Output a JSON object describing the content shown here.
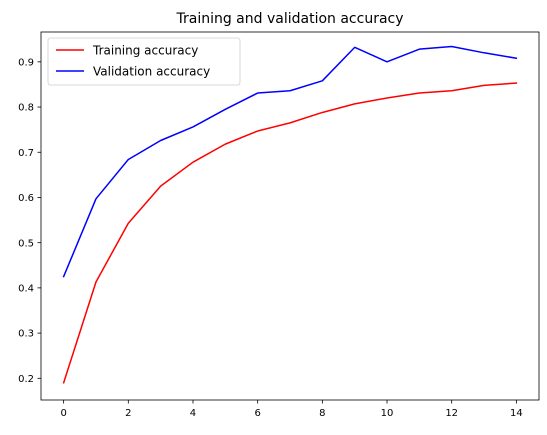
{
  "chart_data": {
    "type": "line",
    "title": "Training and validation accuracy",
    "xlabel": "",
    "ylabel": "",
    "x": [
      0,
      1,
      2,
      3,
      4,
      5,
      6,
      7,
      8,
      9,
      10,
      11,
      12,
      13,
      14
    ],
    "xlim": [
      -0.7,
      14.7
    ],
    "ylim": [
      0.152,
      0.966
    ],
    "x_ticks": [
      0,
      2,
      4,
      6,
      8,
      10,
      12,
      14
    ],
    "y_ticks": [
      0.2,
      0.3,
      0.4,
      0.5,
      0.6,
      0.7,
      0.8,
      0.9
    ],
    "x_tick_labels": [
      "0",
      "2",
      "4",
      "6",
      "8",
      "10",
      "12",
      "14"
    ],
    "y_tick_labels": [
      "0.2",
      "0.3",
      "0.4",
      "0.5",
      "0.6",
      "0.7",
      "0.8",
      "0.9"
    ],
    "grid": false,
    "legend_position": "upper-left",
    "series": [
      {
        "name": "Training accuracy",
        "color": "#ff0000",
        "values": [
          0.19,
          0.413,
          0.543,
          0.625,
          0.678,
          0.718,
          0.747,
          0.765,
          0.788,
          0.807,
          0.82,
          0.831,
          0.836,
          0.848,
          0.853
        ]
      },
      {
        "name": "Validation accuracy",
        "color": "#0000ff",
        "values": [
          0.425,
          0.597,
          0.684,
          0.726,
          0.756,
          0.795,
          0.831,
          0.836,
          0.858,
          0.932,
          0.9,
          0.928,
          0.934,
          0.92,
          0.908
        ]
      }
    ]
  }
}
